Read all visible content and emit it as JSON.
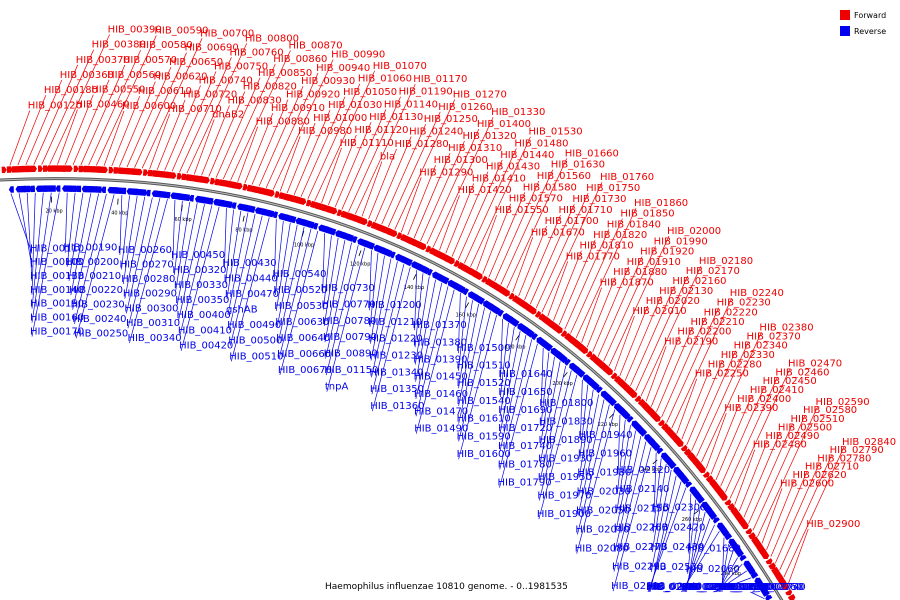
{
  "caption": "Haemophilus influenzae 10810 genome. - 0..1981535",
  "legend": [
    {
      "label": "Forward",
      "color": "#ee0000"
    },
    {
      "label": "Reverse",
      "color": "#0000ee"
    }
  ],
  "ticks": [
    "20 kbp",
    "40 kbp",
    "60 kbp",
    "80 kbp",
    "100 kbp",
    "120 kbp",
    "140 kbp",
    "160 kbp",
    "180 kbp",
    "200 kbp",
    "220 kbp",
    "240 kbp",
    "260 kbp",
    "280 kbp"
  ],
  "forward_labels": [
    "HIB_00120",
    "HIB_00180",
    "HIB_00360",
    "HIB_00370",
    "HIB_00380",
    "HIB_00390",
    "HIB_00460",
    "HIB_00550",
    "HIB_00560",
    "HIB_00570",
    "HIB_00580",
    "HIB_00590",
    "HIB_00600",
    "HIB_00610",
    "HIB_00620",
    "HIB_00650",
    "HIB_00690",
    "HIB_00700",
    "HIB_00710",
    "HIB_00720",
    "HIB_00740",
    "HIB_00750",
    "HIB_00760",
    "HIB_00800",
    "dnaB2",
    "HIB_00830",
    "HIB_00820",
    "HIB_00850",
    "HIB_00860",
    "HIB_00870",
    "HIB_00880",
    "HIB_00910",
    "HIB_00920",
    "HIB_00930",
    "HIB_00940",
    "HIB_00990",
    "HIB_00980",
    "HIB_01000",
    "HIB_01030",
    "HIB_01050",
    "HIB_01060",
    "HIB_01070",
    "HIB_01110",
    "HIB_01120",
    "HIB_01130",
    "HIB_01140",
    "HIB_01190",
    "HIB_01170",
    "bla",
    "HIB_01280",
    "HIB_01240",
    "HIB_01250",
    "HIB_01260",
    "HIB_01270",
    "HIB_01290",
    "HIB_01300",
    "HIB_01310",
    "HIB_01320",
    "HIB_01400",
    "HIB_01330",
    "HIB_01420",
    "HIB_01410",
    "HIB_01430",
    "HIB_01440",
    "HIB_01480",
    "HIB_01530",
    "HIB_01550",
    "HIB_01570",
    "HIB_01580",
    "HIB_01560",
    "HIB_01630",
    "HIB_01660",
    "HIB_01670",
    "HIB_01700",
    "HIB_01710",
    "HIB_01730",
    "HIB_01750",
    "HIB_01760",
    "HIB_01770",
    "HIB_01810",
    "HIB_01820",
    "HIB_01840",
    "HIB_01850",
    "HIB_01860",
    "HIB_01870",
    "HIB_01880",
    "HIB_01910",
    "HIB_01920",
    "HIB_01990",
    "HIB_02000",
    "HIB_02010",
    "HIB_02020",
    "HIB_02130",
    "HIB_02160",
    "HIB_02170",
    "HIB_02180",
    "HIB_02190",
    "HIB_02200",
    "HIB_02210",
    "HIB_02220",
    "HIB_02230",
    "HIB_02240",
    "HIB_02250",
    "HIB_02280",
    "HIB_02330",
    "HIB_02340",
    "HIB_02370",
    "HIB_02380",
    "HIB_02390",
    "HIB_02400",
    "HIB_02410",
    "HIB_02450",
    "HIB_02460",
    "HIB_02470",
    "HIB_02480",
    "HIB_02490",
    "HIB_02500",
    "HIB_02510",
    "HIB_02580",
    "HIB_02590",
    "HIB_02600",
    "HIB_02620",
    "HIB_02710",
    "HIB_02780",
    "HIB_02790",
    "HIB_02840",
    "HIB_02900"
  ],
  "reverse_labels": [
    "HIB_00110",
    "HIB_00100",
    "HIB_00130",
    "HIB_00140",
    "HIB_00150",
    "HIB_00160",
    "HIB_00170",
    "HIB_00190",
    "HIB_00200",
    "HIB_00210",
    "HIB_00220",
    "HIB_00230",
    "HIB_00240",
    "HIB_00250",
    "HIB_00260",
    "HIB_00270",
    "HIB_00280",
    "HIB_00290",
    "HIB_00300",
    "HIB_00310",
    "HIB_00340",
    "HIB_00450",
    "HIB_00320",
    "HIB_00330",
    "HIB_00350",
    "HIB_00400",
    "HIB_00410",
    "HIB_00420",
    "HIB_00430",
    "HIB_00440",
    "HIB_00470",
    "gshAB",
    "HIB_00490",
    "HIB_00500",
    "HIB_00510",
    "HIB_00540",
    "HIB_00520",
    "HIB_00530",
    "HIB_00630",
    "HIB_00640",
    "HIB_00660",
    "HIB_00670",
    "HIB_00730",
    "HIB_00770",
    "HIB_00780",
    "HIB_00790",
    "HIB_00890",
    "HIB_01150",
    "tnpA",
    "HIB_01200",
    "HIB_01210",
    "HIB_01220",
    "HIB_01230",
    "HIB_01340",
    "HIB_01350",
    "HIB_01360",
    "HIB_01370",
    "HIB_01380",
    "HIB_01390",
    "HIB_01450",
    "HIB_01460",
    "HIB_01470",
    "HIB_01490",
    "HIB_01500",
    "HIB_01510",
    "HIB_01520",
    "HIB_01540",
    "HIB_01610",
    "HIB_01590",
    "HIB_01600",
    "HIB_01640",
    "HIB_01650",
    "HIB_01690",
    "HIB_01720",
    "HIB_01740",
    "HIB_01780",
    "HIB_01790",
    "HIB_01800",
    "HIB_01830",
    "HIB_01890",
    "HIB_01930",
    "HIB_01950",
    "HIB_01970",
    "HIB_01900",
    "HIB_01940",
    "HIB_01960",
    "HIB_01980",
    "HIB_02030",
    "HIB_02050",
    "HIB_02040",
    "HIB_02080",
    "HIB_02120",
    "HIB_02140",
    "HIB_02150",
    "HIB_02260",
    "HIB_02270",
    "HIB_02290",
    "HIB_02310",
    "HIB_02300",
    "HIB_02420",
    "HIB_02430",
    "HIB_02530",
    "HIB_02440",
    "HIB_02560",
    "HIB_01620",
    "HIB_01680",
    "HIB_02060",
    "HIB_02070",
    "HIB_02090",
    "HIB_02100",
    "HIB_02110",
    "HIB_02320",
    "HIB_02350",
    "HIB_02360",
    "HIB_02540",
    "HIB_02550",
    "HIB_02650",
    "HIB_02660",
    "HIB02700",
    "HIB_02740",
    "HIB_02750",
    "HIB_02760"
  ]
}
